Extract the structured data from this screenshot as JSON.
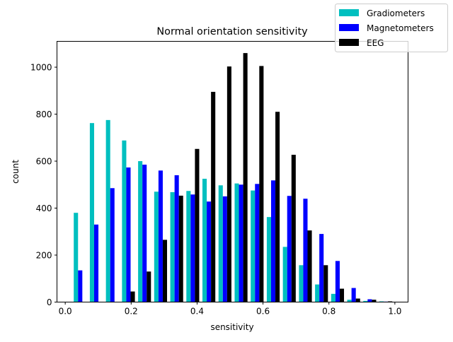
{
  "chart_data": {
    "type": "bar",
    "title": "Normal orientation sensitivity",
    "xlabel": "sensitivity",
    "ylabel": "count",
    "xlim": [
      -0.025,
      1.04
    ],
    "ylim": [
      0,
      1110
    ],
    "xticks": [
      "0.0",
      "0.2",
      "0.4",
      "0.6",
      "0.8",
      "1.0"
    ],
    "yticks": [
      "0",
      "200",
      "400",
      "600",
      "800",
      "1000"
    ],
    "bins": 20,
    "bin_range": [
      0.021,
      0.997
    ],
    "grid": false,
    "legend_placement": "top-right",
    "series": [
      {
        "name": "Gradiometers",
        "color": "#00bfbf",
        "values": [
          380,
          762,
          775,
          688,
          600,
          470,
          468,
          473,
          525,
          497,
          505,
          475,
          362,
          235,
          157,
          75,
          35,
          10,
          5,
          3
        ]
      },
      {
        "name": "Magnetometers",
        "color": "#0000ff",
        "values": [
          135,
          330,
          485,
          573,
          585,
          560,
          540,
          458,
          428,
          450,
          500,
          503,
          518,
          452,
          440,
          290,
          175,
          60,
          12,
          2
        ]
      },
      {
        "name": "EEG",
        "color": "#000000",
        "values": [
          0,
          0,
          0,
          45,
          130,
          265,
          453,
          652,
          895,
          1003,
          1060,
          1005,
          810,
          627,
          305,
          157,
          57,
          15,
          10,
          3
        ]
      }
    ]
  }
}
